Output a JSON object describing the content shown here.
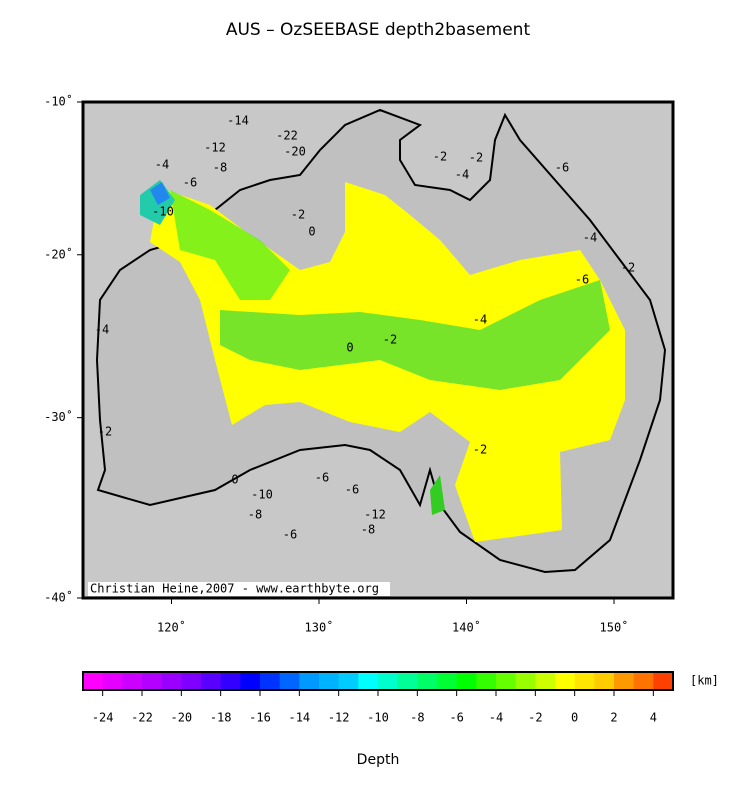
{
  "title": "AUS – OzSEEBASE depth2basement",
  "map": {
    "lonlim": [
      114,
      154
    ],
    "latlim": [
      -40,
      -10
    ],
    "xticks": [
      {
        "value": 120,
        "label": "120˚"
      },
      {
        "value": 130,
        "label": "130˚"
      },
      {
        "value": 140,
        "label": "140˚"
      },
      {
        "value": 150,
        "label": "150˚"
      }
    ],
    "yticks": [
      {
        "value": -10,
        "label": "-10˚"
      },
      {
        "value": -20,
        "label": "-20˚"
      },
      {
        "value": -30,
        "label": "-30˚"
      },
      {
        "value": -40,
        "label": "-40˚"
      }
    ],
    "credit": "Christian Heine,2007 - www.earthbyte.org",
    "contour_labels": [
      "-14",
      "-12",
      "-22",
      "-20",
      "-8",
      "-10",
      "-6",
      "-4",
      "-2",
      "0",
      "-2",
      "-4",
      "-2",
      "-6",
      "-4",
      "-2",
      "0",
      "-2",
      "-4",
      "-6",
      "-10",
      "-8",
      "-6",
      "-12",
      "-6",
      "-4",
      "-2",
      "0",
      "-2",
      "-8",
      "-6"
    ]
  },
  "colorbar": {
    "lim": [
      -25,
      5
    ],
    "ticks": [
      -24,
      -22,
      -20,
      -18,
      -16,
      -14,
      -12,
      -10,
      -8,
      -6,
      -4,
      -2,
      0,
      2,
      4
    ],
    "unit": "[km]",
    "label": "Depth",
    "colors": [
      "#ff00ff",
      "#e600ff",
      "#cc00ff",
      "#b300ff",
      "#9900ff",
      "#7f00ff",
      "#5a00ff",
      "#3300ff",
      "#0000ff",
      "#0033ff",
      "#0066ff",
      "#0099ff",
      "#00b3ff",
      "#00ccff",
      "#00ffff",
      "#00ffcc",
      "#00ff99",
      "#00ff66",
      "#00ff33",
      "#00ff00",
      "#33ff00",
      "#66ff00",
      "#99ff00",
      "#ccff00",
      "#ffff00",
      "#ffe600",
      "#ffcc00",
      "#ff9900",
      "#ff7300",
      "#ff4000"
    ]
  }
}
